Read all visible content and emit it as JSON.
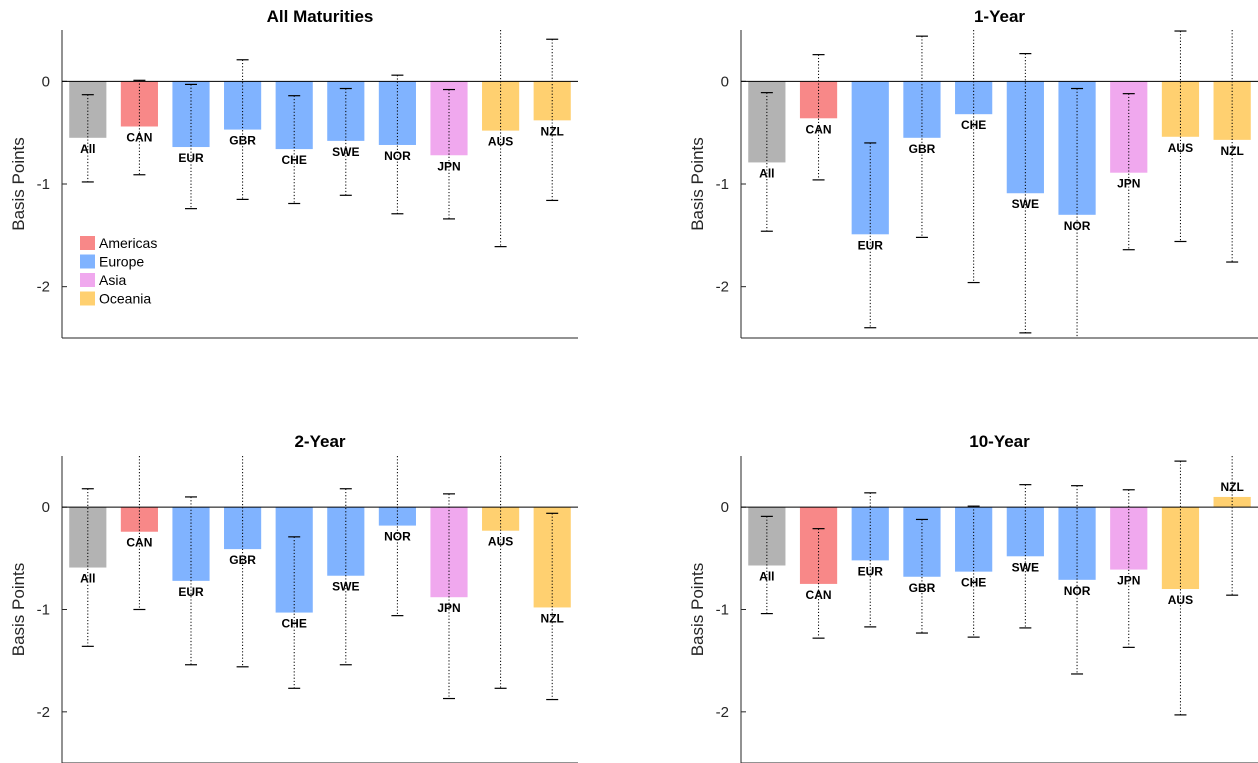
{
  "colors": {
    "All": "#b3b3b3",
    "Americas": "#f88888",
    "Europe": "#80b3ff",
    "Asia": "#f0a8ee",
    "Oceania": "#ffd070"
  },
  "legend": [
    {
      "label": "Americas",
      "group": "Americas"
    },
    {
      "label": "Europe",
      "group": "Europe"
    },
    {
      "label": "Asia",
      "group": "Asia"
    },
    {
      "label": "Oceania",
      "group": "Oceania"
    }
  ],
  "chart_data": [
    {
      "type": "bar",
      "title": "All Maturities",
      "ylabel": "Basis Points",
      "ylim": [
        -2.5,
        0.5
      ],
      "yticks": [
        "-2",
        "-1",
        "0"
      ],
      "categories": [
        "All",
        "CAN",
        "EUR",
        "GBR",
        "CHE",
        "SWE",
        "NOR",
        "JPN",
        "AUS",
        "NZL"
      ],
      "groups": [
        "All",
        "Americas",
        "Europe",
        "Europe",
        "Europe",
        "Europe",
        "Europe",
        "Asia",
        "Oceania",
        "Oceania"
      ],
      "values": [
        -0.55,
        -0.44,
        -0.64,
        -0.47,
        -0.66,
        -0.58,
        -0.62,
        -0.72,
        -0.48,
        -0.38
      ],
      "error_low": [
        -0.98,
        -0.91,
        -1.24,
        -1.15,
        -1.19,
        -1.11,
        -1.29,
        -1.34,
        -1.61,
        -1.16
      ],
      "error_high": [
        -0.13,
        0.01,
        -0.03,
        0.21,
        -0.14,
        -0.07,
        0.06,
        -0.08,
        0.65,
        0.41
      ],
      "legend_position": "bottom-left"
    },
    {
      "type": "bar",
      "title": "1-Year",
      "ylabel": "Basis Points",
      "ylim": [
        -2.5,
        0.5
      ],
      "yticks": [
        "-2",
        "-1",
        "0"
      ],
      "categories": [
        "All",
        "CAN",
        "EUR",
        "GBR",
        "CHE",
        "SWE",
        "NOR",
        "JPN",
        "AUS",
        "NZL"
      ],
      "groups": [
        "All",
        "Americas",
        "Europe",
        "Europe",
        "Europe",
        "Europe",
        "Europe",
        "Asia",
        "Oceania",
        "Oceania"
      ],
      "values": [
        -0.79,
        -0.36,
        -1.49,
        -0.55,
        -0.32,
        -1.09,
        -1.3,
        -0.89,
        -0.54,
        -0.57
      ],
      "error_low": [
        -1.46,
        -0.96,
        -2.4,
        -1.52,
        -1.96,
        -2.45,
        -2.6,
        -1.64,
        -1.56,
        -1.76
      ],
      "error_high": [
        -0.11,
        0.26,
        -0.6,
        0.44,
        0.6,
        0.27,
        -0.07,
        -0.12,
        0.49,
        0.6
      ]
    },
    {
      "type": "bar",
      "title": "2-Year",
      "ylabel": "Basis Points",
      "ylim": [
        -2.5,
        0.5
      ],
      "yticks": [
        "-2",
        "-1",
        "0"
      ],
      "categories": [
        "All",
        "CAN",
        "EUR",
        "GBR",
        "CHE",
        "SWE",
        "NOR",
        "JPN",
        "AUS",
        "NZL"
      ],
      "groups": [
        "All",
        "Americas",
        "Europe",
        "Europe",
        "Europe",
        "Europe",
        "Europe",
        "Asia",
        "Oceania",
        "Oceania"
      ],
      "values": [
        -0.59,
        -0.24,
        -0.72,
        -0.41,
        -1.03,
        -0.67,
        -0.18,
        -0.88,
        -0.23,
        -0.98
      ],
      "error_low": [
        -1.36,
        -1.0,
        -1.54,
        -1.56,
        -1.77,
        -1.54,
        -1.06,
        -1.87,
        -1.77,
        -1.88
      ],
      "error_high": [
        0.18,
        0.6,
        0.1,
        0.6,
        -0.29,
        0.18,
        0.6,
        0.13,
        0.6,
        -0.06
      ]
    },
    {
      "type": "bar",
      "title": "10-Year",
      "ylabel": "Basis Points",
      "ylim": [
        -2.5,
        0.5
      ],
      "yticks": [
        "-2",
        "-1",
        "0"
      ],
      "categories": [
        "All",
        "CAN",
        "EUR",
        "GBR",
        "CHE",
        "SWE",
        "NOR",
        "JPN",
        "AUS",
        "NZL"
      ],
      "groups": [
        "All",
        "Americas",
        "Europe",
        "Europe",
        "Europe",
        "Europe",
        "Europe",
        "Asia",
        "Oceania",
        "Oceania"
      ],
      "values": [
        -0.57,
        -0.75,
        -0.52,
        -0.68,
        -0.63,
        -0.48,
        -0.71,
        -0.61,
        -0.8,
        0.1
      ],
      "error_low": [
        -1.04,
        -1.28,
        -1.17,
        -1.23,
        -1.27,
        -1.18,
        -1.63,
        -1.37,
        -2.03,
        -0.86
      ],
      "error_high": [
        -0.09,
        -0.21,
        0.14,
        -0.12,
        0.01,
        0.22,
        0.21,
        0.17,
        0.45,
        1.05
      ]
    }
  ]
}
